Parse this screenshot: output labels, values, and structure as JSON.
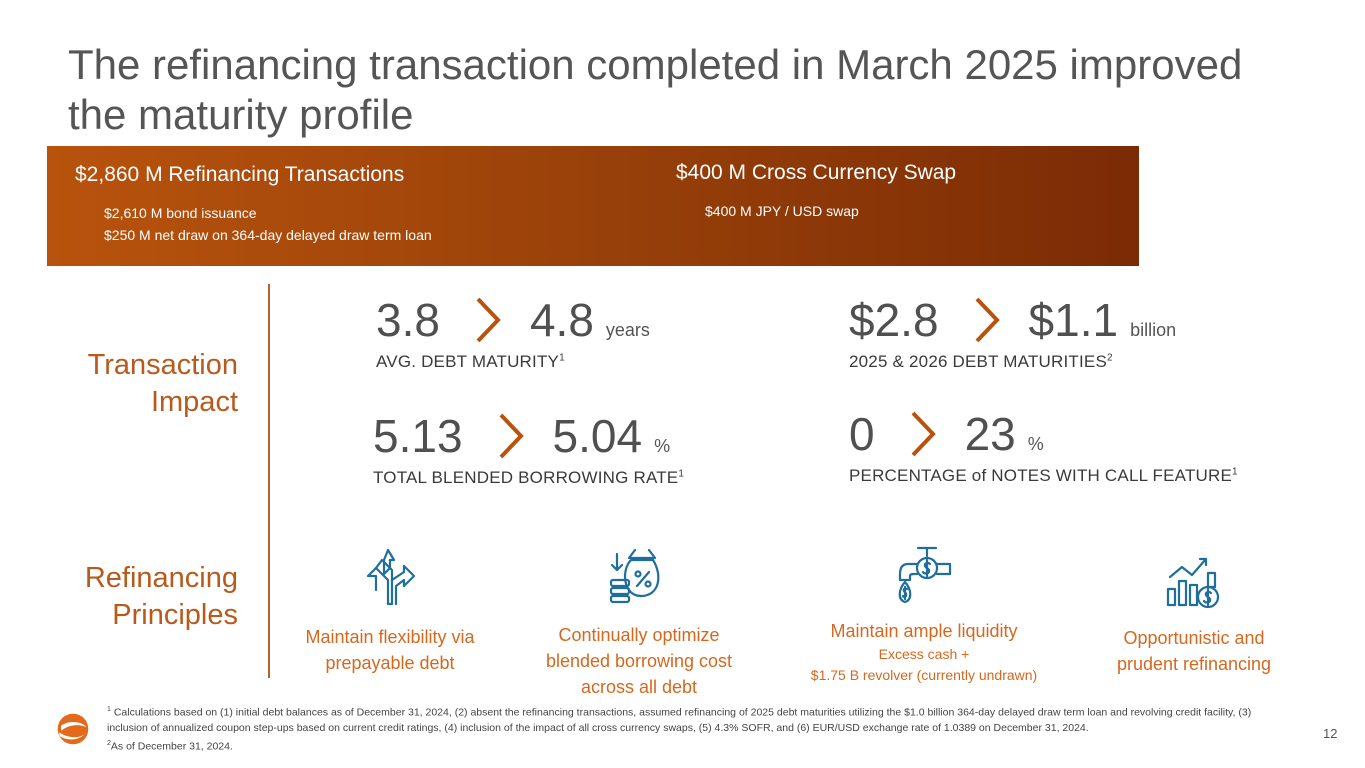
{
  "title": "The refinancing transaction completed in March 2025 improved the maturity profile",
  "banner": {
    "left": {
      "heading": "$2,860 M Refinancing Transactions",
      "items": [
        "$2,610 M bond issuance",
        "$250 M net draw on 364-day delayed draw term loan"
      ]
    },
    "right": {
      "heading": "$400 M Cross Currency Swap",
      "items": [
        "$400 M JPY / USD swap"
      ]
    },
    "colors": {
      "start": "#b8530d",
      "end": "#7b2b05"
    }
  },
  "sections": {
    "impact": "Transaction Impact",
    "principles": "Refinancing Principles"
  },
  "metrics": [
    {
      "from": "3.8",
      "to": "4.8",
      "unit": "years",
      "caption": "AVG. DEBT MATURITY",
      "footnote": "1"
    },
    {
      "from": "$2.8",
      "to": "$1.1",
      "unit": "billion",
      "caption": "2025 & 2026 DEBT MATURITIES",
      "footnote": "2"
    },
    {
      "from": "5.13",
      "to": "5.04",
      "unit": "%",
      "caption": "TOTAL BLENDED BORROWING RATE",
      "footnote": "1"
    },
    {
      "from": "0",
      "to": "23",
      "unit": "%",
      "caption": "PERCENTAGE of NOTES WITH CALL FEATURE",
      "footnote": "1"
    }
  ],
  "principles": [
    {
      "icon": "diverging-arrows-icon",
      "text": "Maintain flexibility via prepayable debt"
    },
    {
      "icon": "money-bag-percent-icon",
      "text": "Continually optimize blended borrowing cost across all debt"
    },
    {
      "icon": "faucet-dollar-icon",
      "text": "Maintain ample liquidity",
      "sub1": "Excess cash +",
      "sub2": "$1.75 B revolver (currently undrawn)"
    },
    {
      "icon": "growth-chart-dollar-icon",
      "text": "Opportunistic and prudent refinancing"
    }
  ],
  "footnotes": {
    "n1_mark": "1",
    "n1": " Calculations based on (1) initial debt balances as of December 31, 2024, (2) absent the refinancing transactions, assumed refinancing of 2025 debt maturities utilizing the $1.0 billion 364-day delayed draw term loan and revolving credit facility, (3) inclusion of annualized coupon step-ups based on current credit ratings, (4) inclusion of the impact of all cross currency swaps, (5) 4.3% SOFR, and (6) EUR/USD exchange rate of 1.0389 on December 31, 2024.",
    "n2_mark": "2",
    "n2": "As of December 31, 2024."
  },
  "page_number": "12",
  "accent": "#b8622b"
}
